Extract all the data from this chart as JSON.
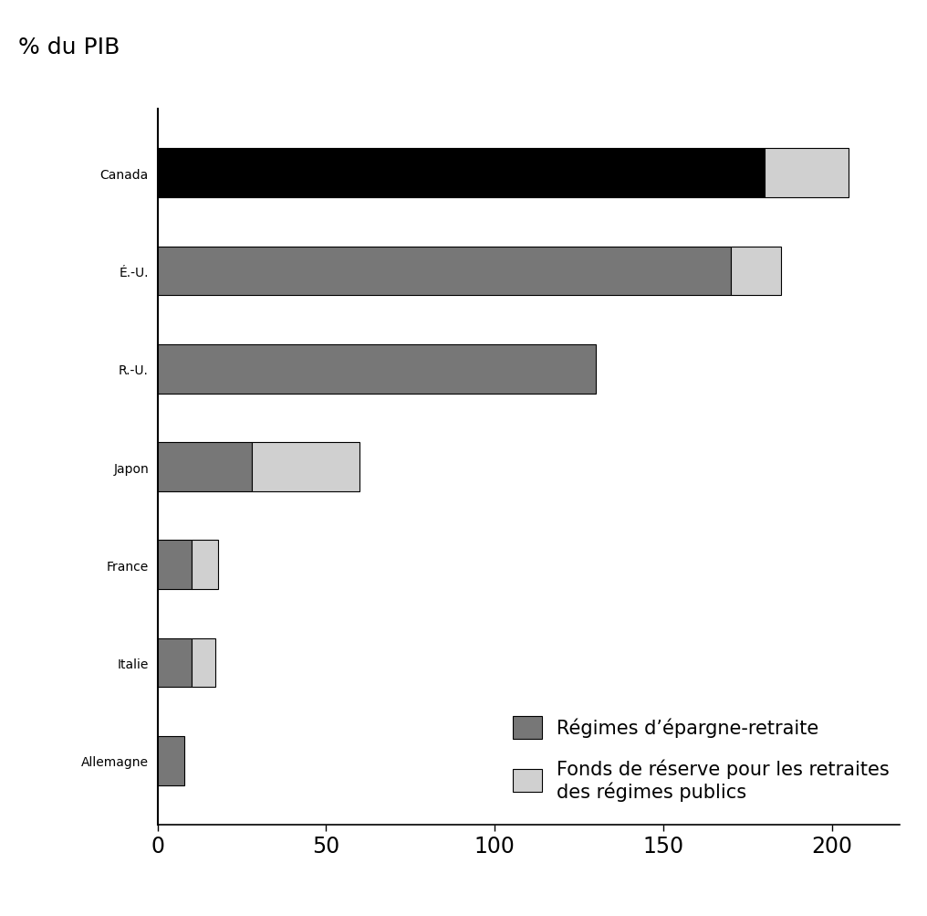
{
  "countries": [
    "Canada",
    "É.-U.",
    "R.-U.",
    "Japon",
    "France",
    "Italie",
    "Allemagne"
  ],
  "pension_savings": [
    180,
    170,
    130,
    28,
    10,
    10,
    8
  ],
  "reserve_funds": [
    25,
    15,
    0,
    32,
    8,
    7,
    0
  ],
  "color_savings_canada": "#000000",
  "color_savings_other": "#777777",
  "color_reserve": "#d0d0d0",
  "ylabel": "% du PIB",
  "xlim": [
    0,
    220
  ],
  "xticks": [
    0,
    50,
    100,
    150,
    200
  ],
  "legend_savings": "Régimes d’épargne-retraite",
  "legend_reserve": "Fonds de réserve pour les retraites\ndes régimes publics",
  "bar_height": 0.5,
  "background_color": "#ffffff",
  "figsize": [
    10.16,
    10.04
  ],
  "dpi": 100
}
